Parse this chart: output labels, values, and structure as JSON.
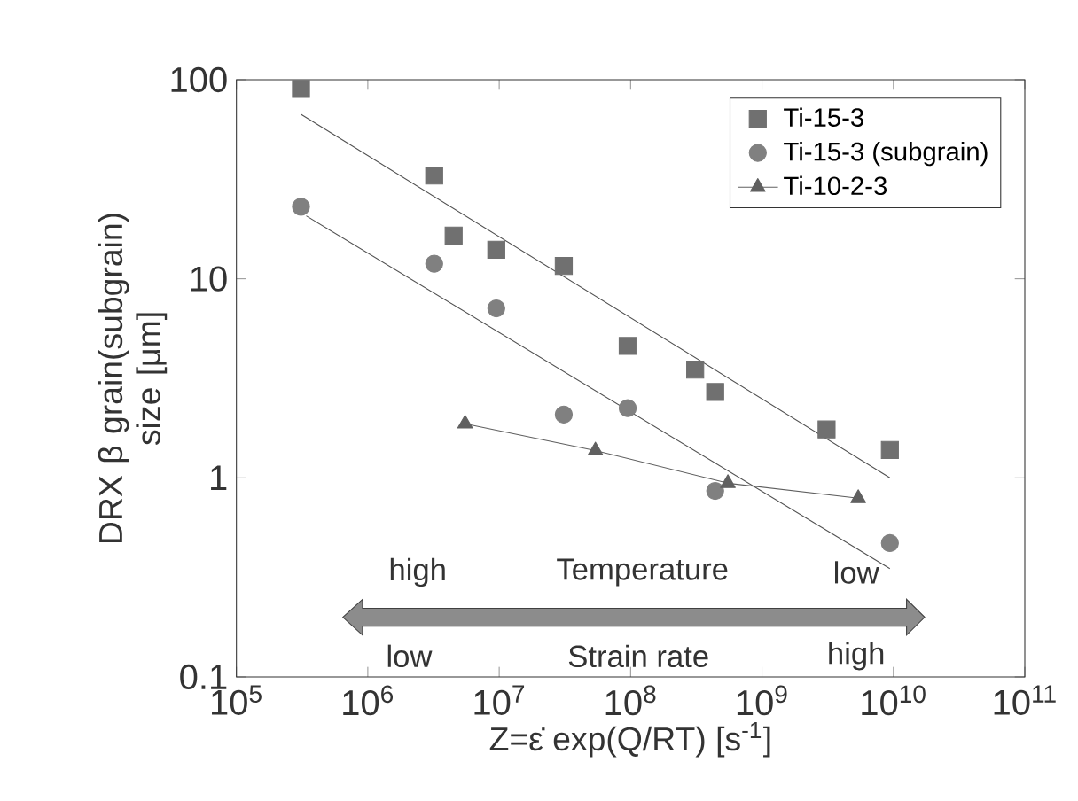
{
  "chart_data": {
    "type": "scatter",
    "xlabel": "Z=ε̇ exp(Q/RT) [s$^{-1}$]",
    "ylabel": "DRX β grain(subgrain) size [μm]",
    "log": "xy",
    "xlim": [
      100000,
      100000000000
    ],
    "ylim": [
      0.1,
      100
    ],
    "xticks": [
      {
        "value": 100000,
        "label": "10$^{5}$"
      },
      {
        "value": 1000000,
        "label": "10$^{6}$"
      },
      {
        "value": 10000000,
        "label": "10$^{7}$"
      },
      {
        "value": 100000000,
        "label": "10$^{8}$"
      },
      {
        "value": 1000000000,
        "label": "10$^{9}$"
      },
      {
        "value": 10000000000,
        "label": "10$^{10}$"
      },
      {
        "value": 100000000000,
        "label": "10$^{11}$"
      }
    ],
    "yticks": [
      0.1,
      1,
      10,
      100
    ],
    "grid": false,
    "legend": "top right",
    "series": [
      {
        "name": "Ti-15-3",
        "marker": "square",
        "color": "#707070",
        "x": [
          310000,
          3200000,
          4500000,
          9500000,
          31000000,
          95000000,
          310000000,
          440000000,
          3100000000,
          9400000000
        ],
        "values": [
          90,
          33,
          16.5,
          14,
          11.6,
          4.6,
          3.5,
          2.7,
          1.75,
          1.38
        ]
      },
      {
        "name": "Ti-15-3 (subgrain)",
        "marker": "circle",
        "color": "#808080",
        "x": [
          310000,
          3200000,
          9500000,
          31000000,
          95000000,
          440000000,
          9400000000
        ],
        "values": [
          23,
          11.9,
          7.1,
          2.08,
          2.24,
          0.86,
          0.47
        ]
      },
      {
        "name": "Ti-10-2-3",
        "type": "line",
        "marker": "triangle",
        "color": "#606060",
        "x": [
          5500000,
          54000000,
          550000000,
          5400000000
        ],
        "values": [
          1.87,
          1.37,
          0.94,
          0.79
        ]
      },
      {
        "type": "line",
        "marker": "none",
        "color": "#505050",
        "x": [
          310000,
          9400000000
        ],
        "values": [
          67,
          1.0
        ]
      },
      {
        "type": "line",
        "marker": "none",
        "color": "#505050",
        "x": [
          340000,
          9400000000
        ],
        "values": [
          20.7,
          0.35
        ]
      }
    ],
    "annotations": [
      "high",
      "Temperature",
      "low",
      "low",
      "Strain rate",
      "high"
    ]
  }
}
